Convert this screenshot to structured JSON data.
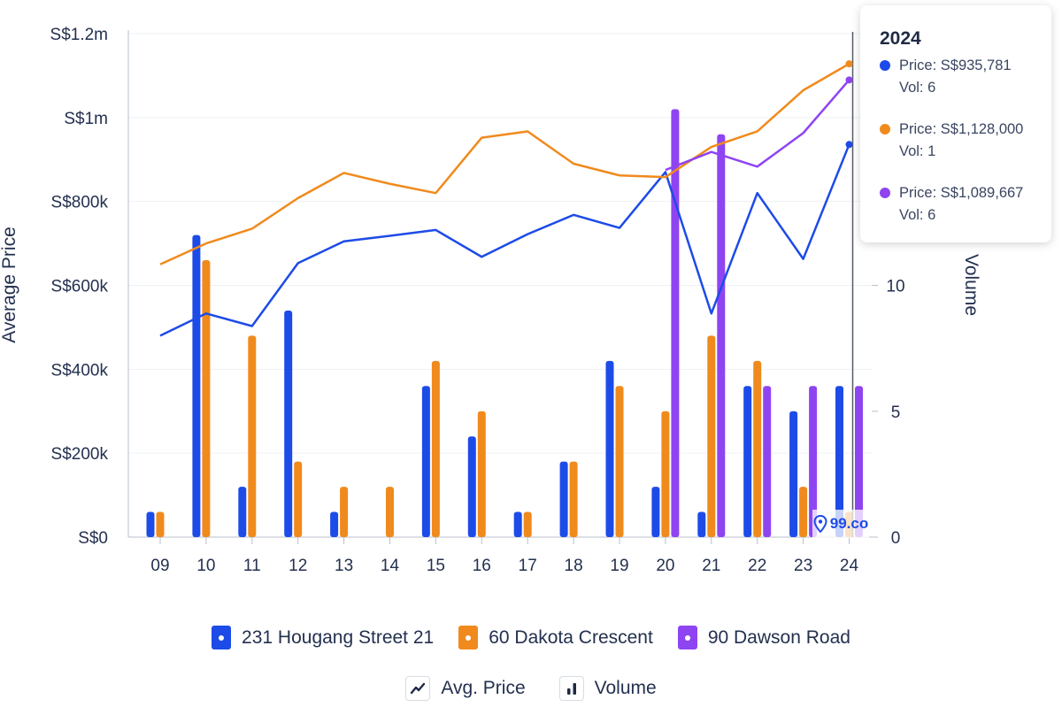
{
  "chart_data": {
    "type": "bar+line",
    "x_tick_labels": [
      "09",
      "10",
      "11",
      "12",
      "13",
      "14",
      "15",
      "16",
      "17",
      "18",
      "19",
      "20",
      "21",
      "22",
      "23",
      "24"
    ],
    "left_axis": {
      "label": "Average Price",
      "ylim": [
        0,
        1200000
      ],
      "tick_labels": [
        "S$0",
        "S$200k",
        "S$400k",
        "S$600k",
        "S$800k",
        "S$1m",
        "S$1.2m"
      ]
    },
    "right_axis": {
      "label": "Volume",
      "ylim": [
        0,
        20
      ],
      "tick_labels": [
        "0",
        "5",
        "10"
      ],
      "tick_values": [
        0,
        5,
        10
      ]
    },
    "grid": true,
    "series": [
      {
        "name": "231 Hougang Street 21",
        "color": "#1d4be8",
        "price": [
          480000,
          533000,
          503000,
          653000,
          705000,
          718000,
          732000,
          668000,
          722000,
          768000,
          737000,
          870000,
          533000,
          820000,
          663000,
          935781
        ],
        "volume": [
          1,
          12,
          2,
          9,
          1,
          null,
          6,
          4,
          1,
          3,
          7,
          2,
          1,
          6,
          5,
          6
        ]
      },
      {
        "name": "60 Dakota Crescent",
        "color": "#f08a1d",
        "price": [
          650000,
          700000,
          735000,
          808000,
          868000,
          842000,
          820000,
          952000,
          967000,
          890000,
          862000,
          858000,
          930000,
          967000,
          1065000,
          1128000
        ],
        "volume": [
          1,
          11,
          8,
          3,
          2,
          2,
          7,
          5,
          1,
          3,
          6,
          5,
          8,
          7,
          2,
          1
        ]
      },
      {
        "name": "90 Dawson Road",
        "color": "#8f44f2",
        "price": [
          null,
          null,
          null,
          null,
          null,
          null,
          null,
          null,
          null,
          null,
          null,
          875000,
          918000,
          883000,
          963000,
          1089667
        ],
        "volume": [
          null,
          null,
          null,
          null,
          null,
          null,
          null,
          null,
          null,
          null,
          null,
          17,
          16,
          6,
          6,
          6
        ]
      }
    ]
  },
  "tooltip": {
    "title": "2024",
    "entries": [
      {
        "price": "Price: S$935,781",
        "vol": "Vol: 6",
        "color": "#1d4be8"
      },
      {
        "price": "Price: S$1,128,000",
        "vol": "Vol: 1",
        "color": "#f08a1d"
      },
      {
        "price": "Price: S$1,089,667",
        "vol": "Vol: 6",
        "color": "#8f44f2"
      }
    ]
  },
  "legend": {
    "series": [
      {
        "label": "231 Hougang Street 21",
        "color": "#1d4be8"
      },
      {
        "label": "60 Dakota Crescent",
        "color": "#f08a1d"
      },
      {
        "label": "90 Dawson Road",
        "color": "#8f44f2"
      }
    ],
    "types": [
      {
        "label": "Avg. Price",
        "icon": "line-chart-icon"
      },
      {
        "label": "Volume",
        "icon": "bar-chart-icon"
      }
    ]
  },
  "watermark": {
    "text": "99.co",
    "icon": "map-pin-icon"
  }
}
